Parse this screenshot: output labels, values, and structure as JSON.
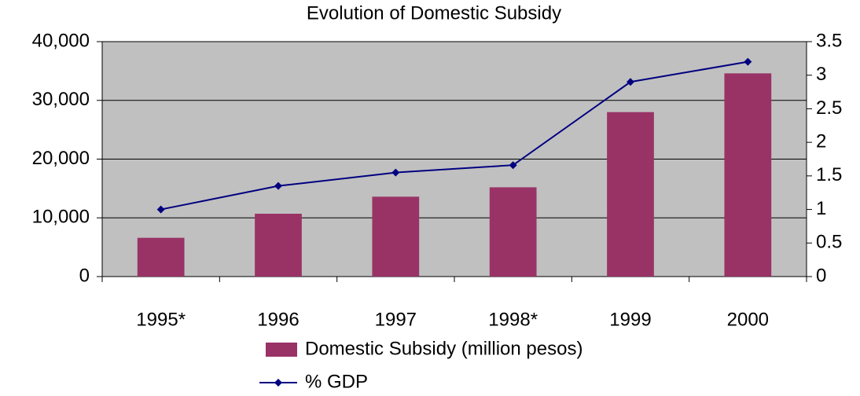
{
  "chart_data": {
    "type": "bar_line",
    "title": "Evolution of Domestic Subsidy",
    "categories": [
      "1995*",
      "1996",
      "1997",
      "1998*",
      "1999",
      "2000"
    ],
    "series": [
      {
        "name": "Domestic Subsidy (million pesos)",
        "type": "bar",
        "color": "#993366",
        "values": [
          6600,
          10700,
          13600,
          15200,
          28000,
          34600
        ]
      },
      {
        "name": "% GDP",
        "type": "line",
        "axis": "y2",
        "color": "#000080",
        "values": [
          1.0,
          1.35,
          1.55,
          1.66,
          2.9,
          3.2
        ]
      }
    ],
    "ylim": [
      0,
      40000
    ],
    "yticks": [
      0,
      {
        "value": 10000,
        "label": "10,000"
      },
      {
        "value": 20000,
        "label": "20,000"
      },
      {
        "value": 30000,
        "label": "30,000"
      },
      {
        "value": 40000,
        "label": "40,000"
      }
    ],
    "y2lim": [
      0,
      3.5
    ],
    "y2ticks": [
      0,
      0.5,
      1,
      1.5,
      2,
      2.5,
      3,
      3.5
    ],
    "grid": true,
    "legend": "bottom",
    "plot_background": "#c0c0c0"
  }
}
